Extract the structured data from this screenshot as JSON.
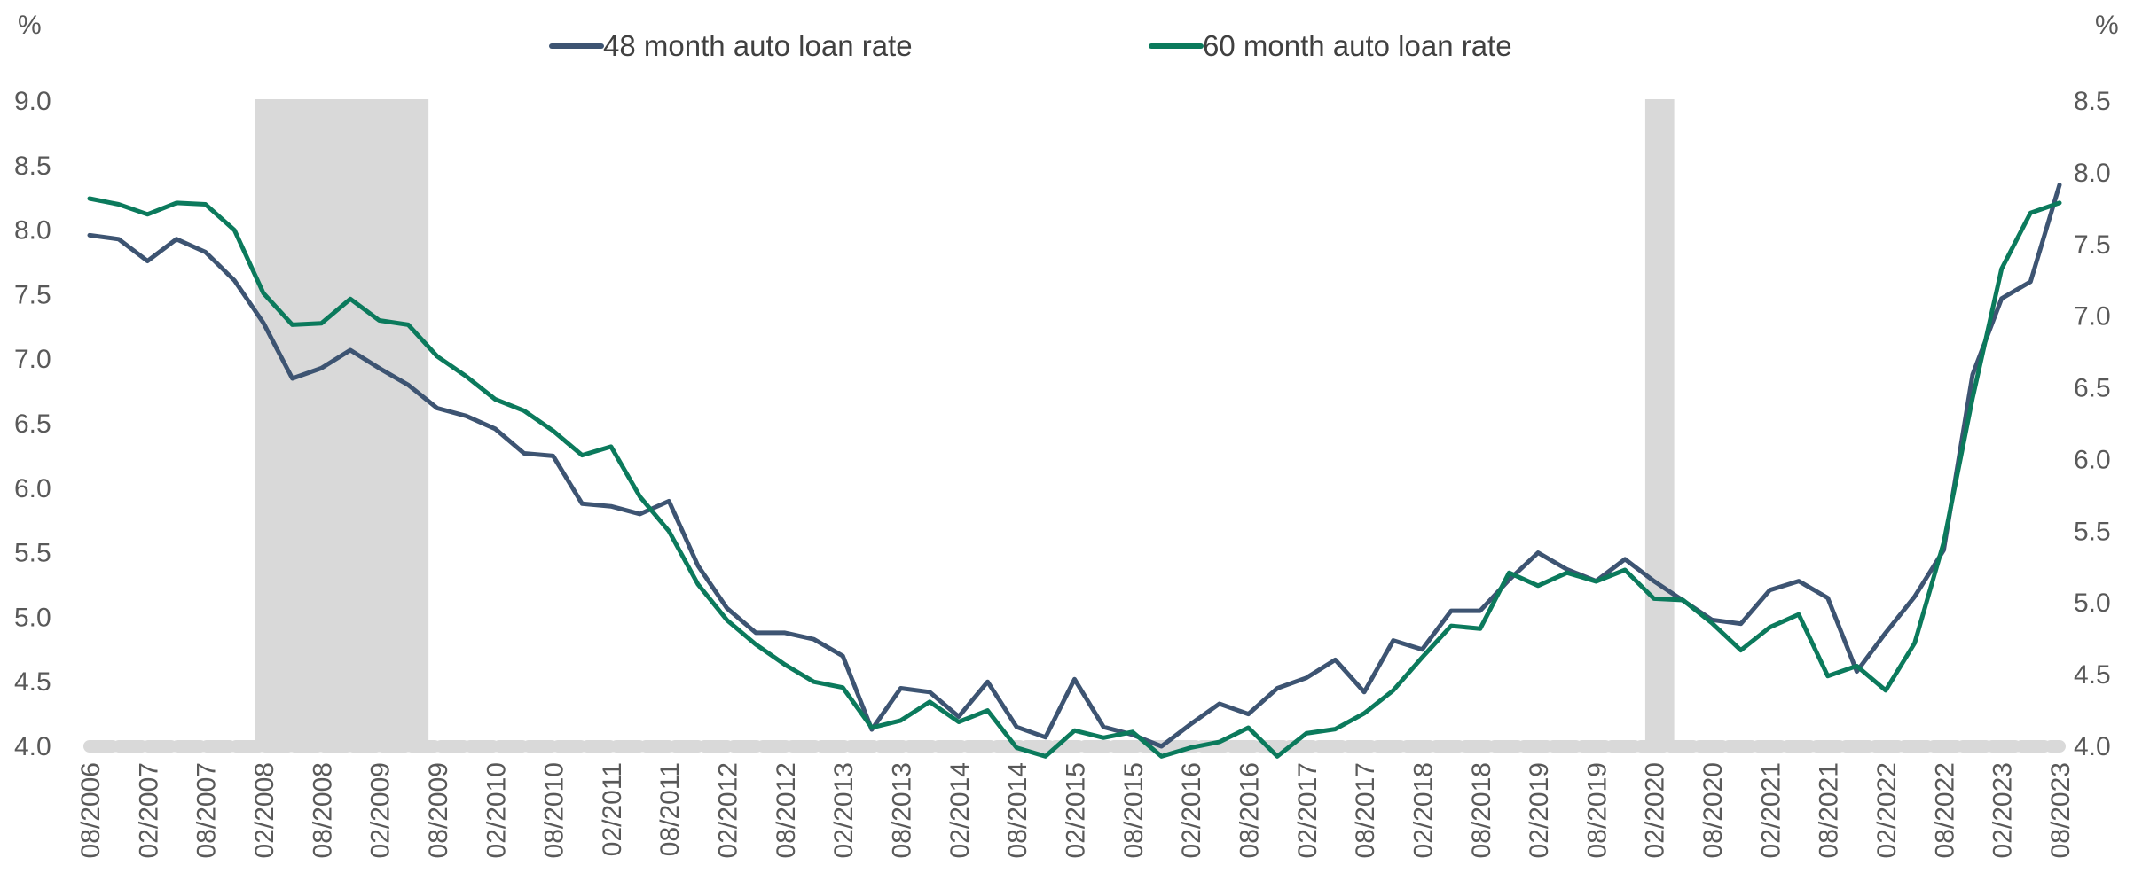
{
  "chart_data": {
    "type": "line",
    "title": "",
    "legend_position": "top-center",
    "grid": false,
    "left_axis": {
      "unit": "%",
      "range": [
        4.0,
        9.0
      ],
      "ticks": [
        "4.0",
        "4.5",
        "5.0",
        "5.5",
        "6.0",
        "6.5",
        "7.0",
        "7.5",
        "8.0",
        "8.5",
        "9.0"
      ]
    },
    "right_axis": {
      "unit": "%",
      "range": [
        4.0,
        8.5
      ],
      "ticks": [
        "4.0",
        "4.5",
        "5.0",
        "5.5",
        "6.0",
        "6.5",
        "7.0",
        "7.5",
        "8.0",
        "8.5"
      ]
    },
    "x_tick_labels": [
      "08/2006",
      "02/2007",
      "08/2007",
      "02/2008",
      "08/2008",
      "02/2009",
      "08/2009",
      "02/2010",
      "08/2010",
      "02/2011",
      "08/2011",
      "02/2012",
      "08/2012",
      "02/2013",
      "08/2013",
      "02/2014",
      "08/2014",
      "02/2015",
      "08/2015",
      "02/2016",
      "08/2016",
      "02/2017",
      "08/2017",
      "02/2018",
      "08/2018",
      "02/2019",
      "08/2019",
      "02/2020",
      "08/2020",
      "02/2021",
      "08/2021",
      "02/2022",
      "08/2022",
      "02/2023",
      "08/2023"
    ],
    "recessions": [
      {
        "start_quarter_index": 5.7,
        "end_quarter_index": 11.7
      },
      {
        "start_quarter_index": 53.7,
        "end_quarter_index": 54.7
      }
    ],
    "series": [
      {
        "name": "48 month auto loan rate",
        "color": "#3d5472",
        "axis": "left",
        "values": [
          7.96,
          7.93,
          7.76,
          7.93,
          7.83,
          7.61,
          7.28,
          6.85,
          6.93,
          7.07,
          6.93,
          6.8,
          6.62,
          6.56,
          6.46,
          6.27,
          6.25,
          5.88,
          5.86,
          5.8,
          5.9,
          5.4,
          5.07,
          4.88,
          4.88,
          4.83,
          4.7,
          4.13,
          4.45,
          4.42,
          4.23,
          4.5,
          4.15,
          4.07,
          4.52,
          4.15,
          4.09,
          4.0,
          4.17,
          4.33,
          4.25,
          4.45,
          4.53,
          4.67,
          4.42,
          4.82,
          4.75,
          5.05,
          5.05,
          5.29,
          5.5,
          5.37,
          5.28,
          5.45,
          5.28,
          5.13,
          4.98,
          4.95,
          5.21,
          5.28,
          5.15,
          4.58,
          4.88,
          5.16,
          5.52,
          6.88,
          7.47,
          7.6,
          8.35
        ]
      },
      {
        "name": "60 month auto loan rate",
        "color": "#0b7a5c",
        "axis": "right",
        "values": [
          7.82,
          7.78,
          7.71,
          7.79,
          7.78,
          7.6,
          7.16,
          6.94,
          6.95,
          7.12,
          6.97,
          6.94,
          6.72,
          6.58,
          6.42,
          6.34,
          6.2,
          6.03,
          6.09,
          5.74,
          5.5,
          5.13,
          4.88,
          4.71,
          4.57,
          4.45,
          4.41,
          4.13,
          4.18,
          4.31,
          4.17,
          4.25,
          3.99,
          3.93,
          4.11,
          4.06,
          4.1,
          3.93,
          3.99,
          4.03,
          4.13,
          3.93,
          4.09,
          4.12,
          4.23,
          4.39,
          4.62,
          4.84,
          4.82,
          5.21,
          5.12,
          5.21,
          5.15,
          5.23,
          5.03,
          5.02,
          4.86,
          4.67,
          4.83,
          4.92,
          4.49,
          4.56,
          4.39,
          4.72,
          5.42,
          6.43,
          7.33,
          7.72,
          7.79
        ]
      }
    ]
  }
}
